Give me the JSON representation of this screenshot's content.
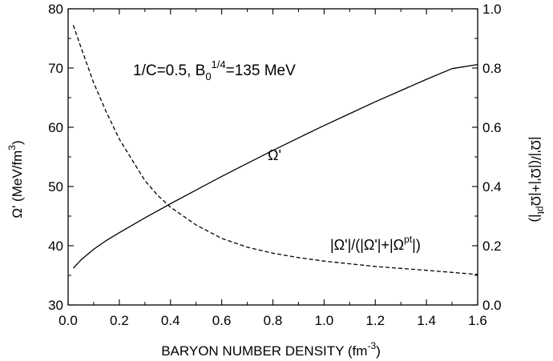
{
  "chart_data": {
    "type": "line",
    "annotation": {
      "text": "1/C=0.5, B",
      "sub": "0",
      "sup": "1/4",
      "tail": "=135 MeV"
    },
    "xlabel": {
      "text": "BARYON NUMBER DENSITY (fm",
      "sup": "-3",
      "tail": ")"
    },
    "ylabel_left": {
      "text": "Ω' (MeV/fm",
      "sup": "3",
      "tail": ")"
    },
    "ylabel_right": {
      "text": "|Ω'|/(|Ω'|+|Ω",
      "sup": "pt",
      "tail": "|)"
    },
    "xlim": [
      0.0,
      1.6
    ],
    "ylim_left": [
      30,
      80
    ],
    "ylim_right": [
      0.0,
      1.0
    ],
    "x_ticks": [
      "0.0",
      "0.2",
      "0.4",
      "0.6",
      "0.8",
      "1.0",
      "1.2",
      "1.4",
      "1.6"
    ],
    "y_ticks_left": [
      "30",
      "40",
      "50",
      "60",
      "70",
      "80"
    ],
    "y_ticks_right": [
      "0.0",
      "0.2",
      "0.4",
      "0.6",
      "0.8",
      "1.0"
    ],
    "series": [
      {
        "name": "Ω'",
        "axis": "left",
        "style": "solid",
        "x": [
          0.02,
          0.05,
          0.1,
          0.15,
          0.2,
          0.3,
          0.4,
          0.5,
          0.6,
          0.7,
          0.8,
          0.9,
          1.0,
          1.1,
          1.2,
          1.3,
          1.4,
          1.5,
          1.6
        ],
        "y": [
          36.2,
          37.6,
          39.4,
          40.9,
          42.2,
          44.7,
          47.1,
          49.4,
          51.7,
          53.9,
          56.1,
          58.2,
          60.3,
          62.3,
          64.3,
          66.2,
          68.1,
          69.9,
          70.6
        ]
      },
      {
        "name": "|Ω'|/(|Ω'|+|Ω^pt|)",
        "axis": "right",
        "style": "dashed",
        "x": [
          0.02,
          0.05,
          0.1,
          0.15,
          0.2,
          0.25,
          0.3,
          0.35,
          0.4,
          0.5,
          0.6,
          0.7,
          0.8,
          0.9,
          1.0,
          1.2,
          1.4,
          1.6
        ],
        "y": [
          0.945,
          0.87,
          0.75,
          0.65,
          0.56,
          0.49,
          0.42,
          0.37,
          0.33,
          0.27,
          0.225,
          0.195,
          0.175,
          0.16,
          0.148,
          0.13,
          0.117,
          0.103
        ]
      }
    ],
    "curve_labels": [
      {
        "text": "Ω'",
        "series": 0
      },
      {
        "text": "|Ω'|/(|Ω'|+|Ω",
        "sup": "pt",
        "tail": "|)",
        "series": 1
      }
    ]
  }
}
